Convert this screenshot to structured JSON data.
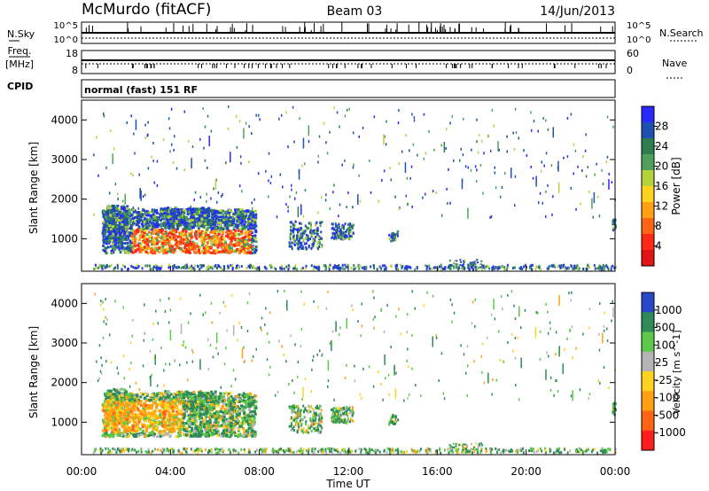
{
  "header": {
    "station": "McMurdo (fitACF)",
    "beam": "Beam 03",
    "date": "14/Jun/2013"
  },
  "status_panels": {
    "nsky_label": "N.Sky",
    "nsky_ticks": [
      "10^5",
      "10^0"
    ],
    "nsearch_label": "N.Search",
    "nsearch_ticks": [
      "10^5",
      "10^0"
    ],
    "freq_label": "Freq.",
    "freq_unit": "[MHz]",
    "freq_ticks": [
      "18",
      "8"
    ],
    "nave_label": "Nave",
    "nave_ticks": [
      "60",
      "0"
    ],
    "cpid_label": "CPID",
    "cpid_text": "normal (fast) 151 RF"
  },
  "chart_data": [
    {
      "type": "heatmap",
      "name": "power",
      "ylabel": "Slant Range [km]",
      "xlabel": "",
      "ylim": [
        180,
        4500
      ],
      "yticks": [
        "4000",
        "3000",
        "2000",
        "1000"
      ],
      "colorbar_label": "Power [dB]",
      "colorbar_ticks": [
        "28",
        "24",
        "20",
        "16",
        "12",
        "8",
        "4"
      ],
      "colors": [
        "#2828ff",
        "#1f4faf",
        "#2e7d4f",
        "#4fa05a",
        "#b4d23c",
        "#ffd21e",
        "#ffa014",
        "#ff6414",
        "#ff2814",
        "#e11414"
      ],
      "regions": [
        {
          "x": [
            0.9,
            7.8
          ],
          "y": [
            600,
            1700
          ],
          "level": "strong"
        },
        {
          "x": [
            9.3,
            10.8
          ],
          "y": [
            700,
            1400
          ],
          "level": "weak"
        },
        {
          "x": [
            11.2,
            12.2
          ],
          "y": [
            950,
            1350
          ],
          "level": "weak"
        },
        {
          "x": [
            13.8,
            14.2
          ],
          "y": [
            900,
            1150
          ],
          "level": "weak"
        },
        {
          "x": [
            16.5,
            18.0
          ],
          "y": [
            200,
            450
          ],
          "level": "weak"
        },
        {
          "x": [
            23.85,
            24.0
          ],
          "y": [
            1150,
            1450
          ],
          "level": "weak"
        }
      ]
    },
    {
      "type": "heatmap",
      "name": "velocity",
      "ylabel": "Slant Range [km]",
      "xlabel": "Time UT",
      "ylim": [
        180,
        4500
      ],
      "yticks": [
        "4000",
        "3000",
        "2000",
        "1000"
      ],
      "xticks": [
        "00:00",
        "04:00",
        "08:00",
        "12:00",
        "16:00",
        "20:00",
        "00:00"
      ],
      "xlim": [
        0,
        24
      ],
      "colorbar_label": "Velocity [m s^-1]",
      "colorbar_ticks": [
        "1000",
        "500",
        "100",
        "25",
        "-25",
        "-100",
        "-500",
        "-1000"
      ],
      "colors": [
        "#2848c8",
        "#2e8a56",
        "#5bc84a",
        "#b4b4b4",
        "#ffd21e",
        "#ffa014",
        "#ff6414",
        "#ff1e1e"
      ],
      "regions": [
        {
          "x": [
            0.9,
            7.8
          ],
          "y": [
            600,
            1700
          ],
          "level": "mixed"
        },
        {
          "x": [
            9.3,
            10.8
          ],
          "y": [
            700,
            1400
          ],
          "level": "mixed"
        },
        {
          "x": [
            11.2,
            12.2
          ],
          "y": [
            950,
            1350
          ],
          "level": "mixed"
        },
        {
          "x": [
            13.8,
            14.2
          ],
          "y": [
            900,
            1150
          ],
          "level": "mixed"
        },
        {
          "x": [
            16.5,
            18.0
          ],
          "y": [
            200,
            450
          ],
          "level": "mixed"
        },
        {
          "x": [
            23.85,
            24.0
          ],
          "y": [
            1150,
            1450
          ],
          "level": "mixed"
        }
      ]
    }
  ]
}
